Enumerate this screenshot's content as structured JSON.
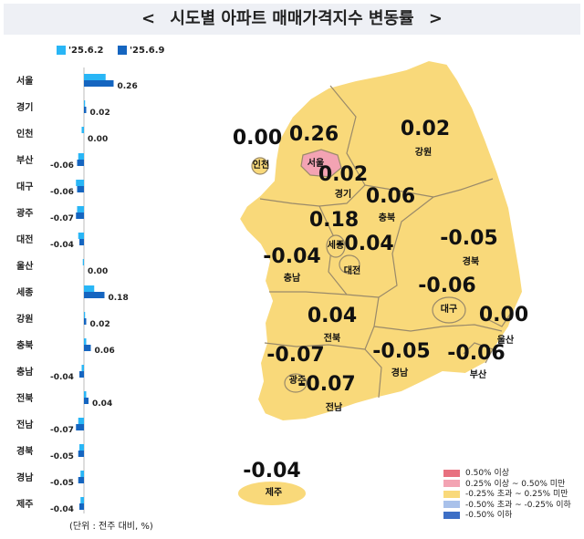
{
  "title": "시도별 아파트 매매가격지수 변동률",
  "nav": {
    "prev": "<",
    "next": ">"
  },
  "legend": [
    {
      "label": "'25.6.2",
      "color": "#29b6f6"
    },
    {
      "label": "'25.6.9",
      "color": "#1565c0"
    }
  ],
  "unit_note": "(단위 : 전주 대비, %)",
  "chart_data": {
    "type": "bar",
    "orientation": "horizontal",
    "categories": [
      "서울",
      "경기",
      "인천",
      "부산",
      "대구",
      "광주",
      "대전",
      "울산",
      "세종",
      "강원",
      "충북",
      "충남",
      "전북",
      "전남",
      "경북",
      "경남",
      "제주"
    ],
    "series": [
      {
        "name": "'25.6.2",
        "values": [
          0.19,
          0.01,
          -0.02,
          -0.05,
          -0.07,
          -0.06,
          -0.05,
          -0.01,
          0.09,
          0.01,
          0.02,
          -0.02,
          0.02,
          -0.05,
          -0.04,
          -0.03,
          -0.03
        ]
      },
      {
        "name": "'25.6.9",
        "values": [
          0.26,
          0.02,
          0.0,
          -0.06,
          -0.06,
          -0.07,
          -0.04,
          0.0,
          0.18,
          0.02,
          0.06,
          -0.04,
          0.04,
          -0.07,
          -0.05,
          -0.05,
          -0.04
        ]
      }
    ],
    "data_labels": [
      "0.26",
      "0.02",
      "0.00",
      "-0.06",
      "-0.06",
      "-0.07",
      "-0.04",
      "0.00",
      "0.18",
      "0.02",
      "0.06",
      "-0.04",
      "0.04",
      "-0.07",
      "-0.05",
      "-0.05",
      "-0.04"
    ],
    "xlim": [
      -0.12,
      0.3
    ],
    "grid": false
  },
  "map": {
    "regions": [
      {
        "name": "인천",
        "value": "0.00",
        "color": "#f9d97a"
      },
      {
        "name": "서울",
        "value": "0.26",
        "color": "#f3a3b3"
      },
      {
        "name": "강원",
        "value": "0.02",
        "color": "#f9d97a"
      },
      {
        "name": "경기",
        "value": "0.02",
        "color": "#f9d97a"
      },
      {
        "name": "충북",
        "value": "0.06",
        "color": "#f9d97a"
      },
      {
        "name": "세종",
        "value": "0.18",
        "color": "#f9d97a"
      },
      {
        "name": "대전",
        "value": "-0.04",
        "color": "#f9d97a"
      },
      {
        "name": "충남",
        "value": "-0.04",
        "color": "#f9d97a"
      },
      {
        "name": "경북",
        "value": "-0.05",
        "color": "#f9d97a"
      },
      {
        "name": "대구",
        "value": "-0.06",
        "color": "#f9d97a"
      },
      {
        "name": "전북",
        "value": "0.04",
        "color": "#f9d97a"
      },
      {
        "name": "울산",
        "value": "0.00",
        "color": "#f9d97a"
      },
      {
        "name": "광주",
        "value": "-0.07",
        "color": "#f9d97a"
      },
      {
        "name": "경남",
        "value": "-0.05",
        "color": "#f9d97a"
      },
      {
        "name": "부산",
        "value": "-0.06",
        "color": "#f9d97a"
      },
      {
        "name": "전남",
        "value": "-0.07",
        "color": "#f9d97a"
      },
      {
        "name": "제주",
        "value": "-0.04",
        "color": "#f9d97a"
      }
    ],
    "legend": [
      {
        "label": "0.50% 이상",
        "color": "#e8707f"
      },
      {
        "label": "0.25% 이상 ~ 0.50% 미만",
        "color": "#f3a3b3"
      },
      {
        "label": "-0.25% 초과 ~ 0.25% 미만",
        "color": "#f9d97a"
      },
      {
        "label": "-0.50% 초과 ~ -0.25% 이하",
        "color": "#a9c1ea"
      },
      {
        "label": "-0.50% 이하",
        "color": "#3d6fc6"
      }
    ]
  }
}
